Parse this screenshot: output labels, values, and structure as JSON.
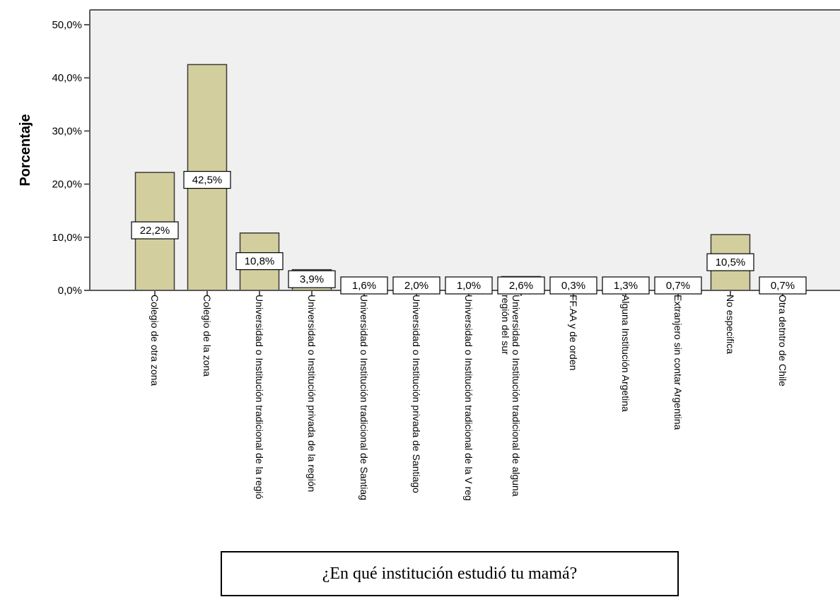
{
  "chart_data": {
    "type": "bar",
    "title": "",
    "caption": "¿En qué institución estudió tu mamá?",
    "xlabel": "",
    "ylabel": "Porcentaje",
    "ylim": [
      0,
      50
    ],
    "y_ticks": [
      "0,0%",
      "10,0%",
      "20,0%",
      "30,0%",
      "40,0%",
      "50,0%"
    ],
    "grid": false,
    "categories": [
      "Colegio de otra zona",
      "Colegio de la zona",
      "Universidad o Institución tradicional de la regió",
      "Universidad o Institución privada de la región",
      "Universidad o Institución tradicional de Santiag",
      "Universidad o Institución privada de Santiago",
      "Universidad o Institución tradicional de la V reg",
      "Universidad o Institución tradicional de alguna región del sur",
      "FF.AA y de orden",
      "Alguna Institución Argetina",
      "Extranjero sin contar Argentina",
      "No especifica",
      "Otra  detntro de Chile"
    ],
    "values": [
      22.2,
      42.5,
      10.8,
      3.9,
      1.6,
      2.0,
      1.0,
      2.6,
      0.3,
      1.3,
      0.7,
      10.5,
      0.7
    ],
    "data_labels": [
      "22,2%",
      "42,5%",
      "10,8%",
      "3,9%",
      "1,6%",
      "2,0%",
      "1,0%",
      "2,6%",
      "0,3%",
      "1,3%",
      "0,7%",
      "10,5%",
      "0,7%"
    ],
    "colors": {
      "bar_fill": "#d3ce9d",
      "bar_stroke": "#3a3a3a",
      "plot_bg": "#f0f0f0",
      "axis": "#5a5a5a"
    }
  }
}
